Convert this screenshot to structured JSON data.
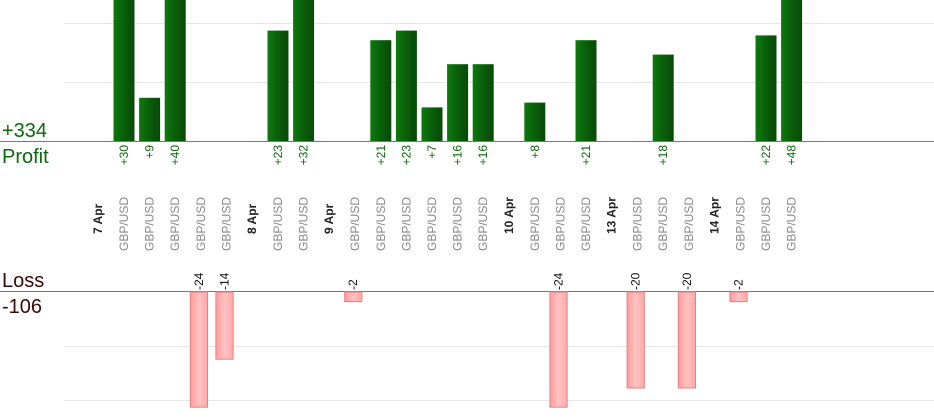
{
  "chart_data": {
    "type": "bar",
    "profit": {
      "label": "Profit",
      "total": "+334"
    },
    "loss": {
      "label": "Loss",
      "total": "-106"
    },
    "series_colors": {
      "profit": "#0a6a0a",
      "loss": "#ffb0b0",
      "loss_border": "#e88080"
    },
    "trades": [
      {
        "pair": "GBP/USD",
        "value": 30,
        "label": "+30"
      },
      {
        "pair": "GBP/USD",
        "value": 9,
        "label": "+9"
      },
      {
        "pair": "GBP/USD",
        "value": 40,
        "label": "+40"
      },
      {
        "pair": "GBP/USD",
        "value": -24,
        "label": "-24"
      },
      {
        "pair": "GBP/USD",
        "value": -14,
        "label": "-14"
      },
      {
        "pair": "GBP/USD",
        "value": 23,
        "label": "+23"
      },
      {
        "pair": "GBP/USD",
        "value": 32,
        "label": "+32"
      },
      {
        "pair": "GBP/USD",
        "value": -2,
        "label": "-2"
      },
      {
        "pair": "GBP/USD",
        "value": 21,
        "label": "+21"
      },
      {
        "pair": "GBP/USD",
        "value": 23,
        "label": "+23"
      },
      {
        "pair": "GBP/USD",
        "value": 7,
        "label": "+7"
      },
      {
        "pair": "GBP/USD",
        "value": 16,
        "label": "+16"
      },
      {
        "pair": "GBP/USD",
        "value": 16,
        "label": "+16"
      },
      {
        "pair": "GBP/USD",
        "value": 8,
        "label": "+8"
      },
      {
        "pair": "GBP/USD",
        "value": -24,
        "label": "-24"
      },
      {
        "pair": "GBP/USD",
        "value": 21,
        "label": "+21"
      },
      {
        "pair": "GBP/USD",
        "value": -20,
        "label": "-20"
      },
      {
        "pair": "GBP/USD",
        "value": 18,
        "label": "+18"
      },
      {
        "pair": "GBP/USD",
        "value": -20,
        "label": "-20"
      },
      {
        "pair": "GBP/USD",
        "value": -2,
        "label": "-2"
      },
      {
        "pair": "GBP/USD",
        "value": 22,
        "label": "+22"
      },
      {
        "pair": "GBP/USD",
        "value": 48,
        "label": "+48"
      }
    ],
    "dates": [
      {
        "label": "7 Apr",
        "before": 0
      },
      {
        "label": "8 Apr",
        "before": 5
      },
      {
        "label": "9 Apr",
        "before": 7
      },
      {
        "label": "10 Apr",
        "before": 13
      },
      {
        "label": "13 Apr",
        "before": 16
      },
      {
        "label": "14 Apr",
        "before": 19
      }
    ]
  }
}
